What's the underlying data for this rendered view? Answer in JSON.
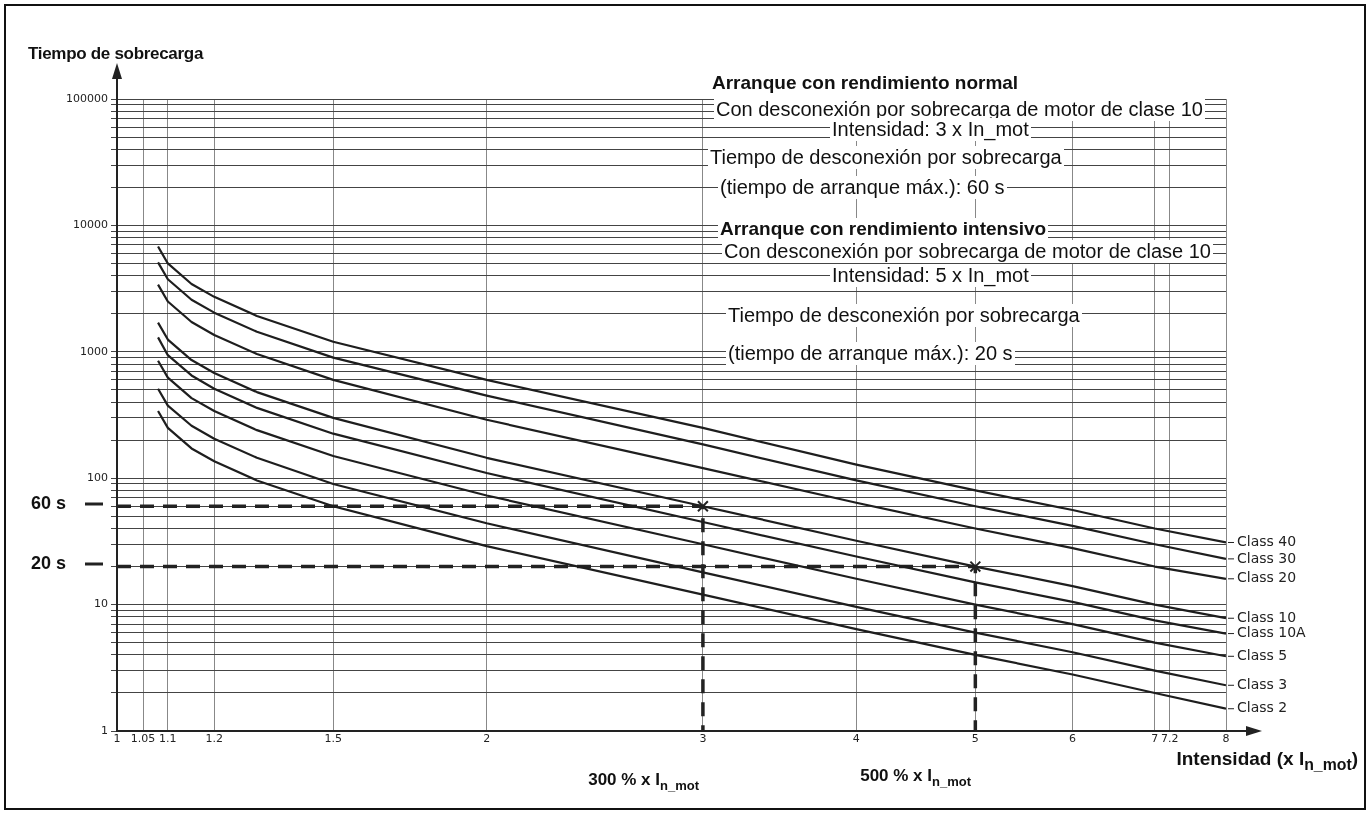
{
  "chart_data": {
    "type": "line",
    "xlabel": "Intensidad (x I$_{n_mot}$)",
    "ylabel": "Tiempo de sobrecarga",
    "log": "xy",
    "grid": true,
    "legend": "right",
    "xlim": [
      1,
      8
    ],
    "ylim": [
      1,
      100000
    ],
    "xticks": [
      1,
      1.05,
      1.1,
      1.2,
      1.5,
      2,
      3,
      4,
      5,
      6,
      7,
      7.2,
      8
    ],
    "yticks": [
      1,
      {
        "value": 2,
        "label": null
      },
      {
        "value": 3,
        "label": null
      },
      {
        "value": 4,
        "label": null
      },
      {
        "value": 5,
        "label": null
      },
      {
        "value": 6,
        "label": null
      },
      {
        "value": 7,
        "label": null
      },
      {
        "value": 8,
        "label": null
      },
      {
        "value": 9,
        "label": null
      },
      10,
      {
        "value": 20,
        "label": null
      },
      {
        "value": 30,
        "label": null
      },
      {
        "value": 40,
        "label": null
      },
      {
        "value": 50,
        "label": null
      },
      {
        "value": 60,
        "label": null
      },
      {
        "value": 70,
        "label": null
      },
      {
        "value": 80,
        "label": null
      },
      {
        "value": 90,
        "label": null
      },
      100,
      {
        "value": 200,
        "label": null
      },
      {
        "value": 300,
        "label": null
      },
      {
        "value": 400,
        "label": null
      },
      {
        "value": 500,
        "label": null
      },
      {
        "value": 600,
        "label": null
      },
      {
        "value": 700,
        "label": null
      },
      {
        "value": 800,
        "label": null
      },
      {
        "value": 900,
        "label": null
      },
      1000,
      {
        "value": 2000,
        "label": null
      },
      {
        "value": 3000,
        "label": null
      },
      {
        "value": 4000,
        "label": null
      },
      {
        "value": 5000,
        "label": null
      },
      {
        "value": 6000,
        "label": null
      },
      {
        "value": 7000,
        "label": null
      },
      {
        "value": 8000,
        "label": null
      },
      {
        "value": 9000,
        "label": null
      },
      10000,
      {
        "value": 20000,
        "label": null
      },
      {
        "value": 30000,
        "label": null
      },
      {
        "value": 40000,
        "label": null
      },
      {
        "value": 50000,
        "label": null
      },
      {
        "value": 60000,
        "label": null
      },
      {
        "value": 70000,
        "label": null
      },
      {
        "value": 80000,
        "label": null
      },
      {
        "value": 90000,
        "label": null
      },
      100000
    ],
    "x": [
      1.08,
      1.1,
      1.15,
      1.2,
      1.3,
      1.5,
      2,
      3,
      4,
      5,
      6,
      7,
      8
    ],
    "series": [
      {
        "name": "Class 40",
        "color": "#1e1e1e",
        "values": [
          6800,
          5000,
          3440,
          2720,
          1920,
          1200,
          600,
          250,
          128,
          80,
          56,
          40,
          31
        ]
      },
      {
        "name": "Class 30",
        "color": "#1e1e1e",
        "values": [
          5100,
          3750,
          2580,
          2040,
          1440,
          900,
          450,
          185,
          96,
          60,
          42,
          30,
          23
        ]
      },
      {
        "name": "Class 20",
        "color": "#1e1e1e",
        "values": [
          3400,
          2500,
          1720,
          1360,
          960,
          600,
          290,
          120,
          64,
          40,
          28,
          20,
          16
        ]
      },
      {
        "name": "Class 10",
        "color": "#1e1e1e",
        "values": [
          1700,
          1250,
          860,
          680,
          480,
          300,
          145,
          60,
          32,
          20,
          14,
          10,
          7.8
        ]
      },
      {
        "name": "Class 10A",
        "color": "#1e1e1e",
        "values": [
          1300,
          940,
          650,
          510,
          360,
          225,
          110,
          45,
          24,
          15,
          10.5,
          7.5,
          5.9
        ]
      },
      {
        "name": "Class 5",
        "color": "#1e1e1e",
        "values": [
          850,
          625,
          430,
          340,
          240,
          150,
          73,
          30,
          16,
          10,
          7,
          5,
          3.9
        ]
      },
      {
        "name": "Class 3",
        "color": "#1e1e1e",
        "values": [
          510,
          375,
          260,
          205,
          145,
          90,
          44,
          18,
          9.6,
          6,
          4.2,
          3,
          2.3
        ]
      },
      {
        "name": "Class 2",
        "color": "#1e1e1e",
        "values": [
          340,
          250,
          172,
          136,
          96,
          60,
          29,
          12,
          6.4,
          4,
          2.8,
          2,
          1.5
        ]
      },
      {
        "color": "#222222",
        "line_style": "dashed",
        "marker": "none",
        "x": [
          1,
          3,
          3
        ],
        "values": [
          60,
          60,
          1
        ]
      },
      {
        "color": "#222222",
        "line_style": "dashed",
        "marker": "none",
        "x": [
          1,
          5,
          5
        ],
        "values": [
          20,
          20,
          1
        ]
      },
      {
        "type": "scatter",
        "color": "#222222",
        "marker": "cross",
        "x": [
          3,
          5
        ],
        "values": [
          60,
          20
        ]
      }
    ],
    "annotations": [
      "Arranque con rendimiento normal",
      "Con desconexión por sobrecarga de motor de clase 10",
      "Intensidad: 3 x In_mot",
      "Tiempo de desconexión por sobrecarga",
      "(tiempo de arranque máx.): 60 s",
      "Arranque con rendimiento intensivo",
      "Con desconexión por sobrecarga de motor de clase 10",
      "Intensidad: 5 x In_mot",
      "Tiempo de desconexión por sobrecarga",
      "(tiempo de arranque máx.): 20 s",
      "60 s",
      "20 s",
      "300 % x I$_{n_mot}$",
      "500 % x I$_{n_mot}$"
    ]
  }
}
